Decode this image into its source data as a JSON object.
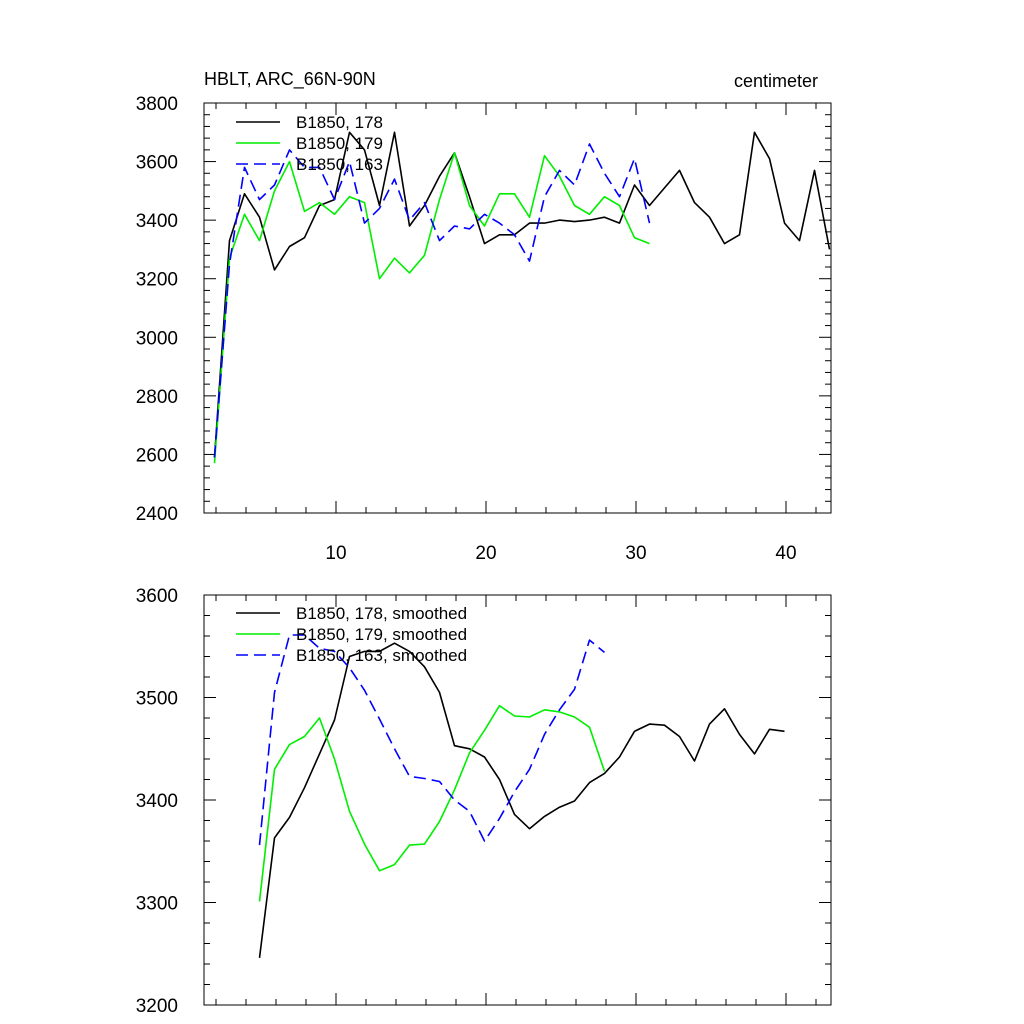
{
  "chart_data": [
    {
      "type": "line",
      "title": "HBLT, ARC_66N-90N",
      "units": "centimeter",
      "xlim": [
        1.2,
        43
      ],
      "ylim": [
        2400,
        3800
      ],
      "x_ticks": [
        10,
        20,
        30,
        40
      ],
      "y_ticks": [
        2400,
        2600,
        2800,
        3000,
        3200,
        3400,
        3600,
        3800
      ],
      "legend_placement": "top-left",
      "grid": false,
      "series": [
        {
          "name": "B1850, 178",
          "color": "#000000",
          "dash": "solid",
          "x": [
            1.9,
            2.9,
            3.9,
            4.9,
            5.9,
            6.9,
            7.9,
            8.9,
            9.9,
            10.9,
            11.9,
            12.9,
            13.9,
            14.9,
            15.9,
            16.9,
            17.9,
            18.9,
            19.9,
            20.9,
            21.9,
            22.9,
            23.9,
            24.9,
            25.9,
            26.9,
            27.9,
            28.9,
            29.9,
            30.9,
            31.9,
            32.9,
            33.9,
            34.9,
            35.9,
            36.9,
            37.9,
            38.9,
            39.9,
            40.9,
            41.9,
            42.9
          ],
          "y": [
            2590,
            3330,
            3490,
            3410,
            3230,
            3310,
            3340,
            3450,
            3470,
            3700,
            3640,
            3450,
            3700,
            3380,
            3450,
            3550,
            3630,
            3480,
            3320,
            3350,
            3350,
            3390,
            3390,
            3400,
            3395,
            3400,
            3410,
            3390,
            3520,
            3450,
            3510,
            3570,
            3460,
            3410,
            3320,
            3350,
            3700,
            3610,
            3390,
            3330,
            3570,
            3300
          ]
        },
        {
          "name": "B1850, 179",
          "color": "#00ee00",
          "dash": "solid",
          "x": [
            1.9,
            2.9,
            3.9,
            4.9,
            5.9,
            6.9,
            7.9,
            8.9,
            9.9,
            10.9,
            11.9,
            12.9,
            13.9,
            14.9,
            15.9,
            16.9,
            17.9,
            18.9,
            19.9,
            20.9,
            21.9,
            22.9,
            23.9,
            24.9,
            25.9,
            26.9,
            27.9,
            28.9,
            29.9,
            30.9
          ],
          "y": [
            2570,
            3270,
            3420,
            3330,
            3500,
            3600,
            3430,
            3460,
            3420,
            3480,
            3460,
            3200,
            3270,
            3220,
            3280,
            3470,
            3630,
            3450,
            3380,
            3490,
            3490,
            3410,
            3620,
            3550,
            3450,
            3420,
            3480,
            3450,
            3340,
            3320
          ]
        },
        {
          "name": "B1850, 163",
          "color": "#0000ff",
          "dash": "dashed",
          "x": [
            1.9,
            2.9,
            3.9,
            4.9,
            5.9,
            6.9,
            7.9,
            8.9,
            9.9,
            10.9,
            11.9,
            12.9,
            13.9,
            14.9,
            15.9,
            16.9,
            17.9,
            18.9,
            19.9,
            20.9,
            21.9,
            22.9,
            23.9,
            24.9,
            25.9,
            26.9,
            27.9,
            28.9,
            29.9,
            30.9
          ],
          "y": [
            2590,
            3250,
            3580,
            3470,
            3520,
            3640,
            3580,
            3580,
            3470,
            3600,
            3390,
            3440,
            3540,
            3400,
            3460,
            3330,
            3380,
            3370,
            3420,
            3390,
            3350,
            3260,
            3480,
            3570,
            3520,
            3660,
            3560,
            3480,
            3610,
            3390
          ]
        }
      ]
    },
    {
      "type": "line",
      "title": "",
      "xlim": [
        1.2,
        43
      ],
      "ylim": [
        3200,
        3600
      ],
      "x_ticks": [
        10,
        20,
        30,
        40
      ],
      "y_ticks": [
        3200,
        3300,
        3400,
        3500,
        3600
      ],
      "legend_placement": "top-left",
      "grid": false,
      "series": [
        {
          "name": "B1850, 178, smoothed",
          "color": "#000000",
          "dash": "solid",
          "x": [
            4.9,
            5.9,
            6.9,
            7.9,
            8.9,
            9.9,
            10.9,
            11.9,
            12.9,
            13.9,
            14.9,
            15.9,
            16.9,
            17.9,
            18.9,
            19.9,
            20.9,
            21.9,
            22.9,
            23.9,
            24.9,
            25.9,
            26.9,
            27.9,
            28.9,
            29.9,
            30.9,
            31.9,
            32.9,
            33.9,
            34.9,
            35.9,
            36.9,
            37.9,
            38.9,
            39.9
          ],
          "y": [
            3246,
            3363,
            3383,
            3412,
            3445,
            3478,
            3540,
            3545,
            3545,
            3553,
            3545,
            3530,
            3505,
            3453,
            3450,
            3442,
            3420,
            3386,
            3372,
            3384,
            3393,
            3399,
            3417,
            3426,
            3442,
            3467,
            3474,
            3473,
            3462,
            3438,
            3474,
            3489,
            3464,
            3445,
            3469,
            3467
          ]
        },
        {
          "name": "B1850, 179, smoothed",
          "color": "#00ee00",
          "dash": "solid",
          "x": [
            4.9,
            5.9,
            6.9,
            7.9,
            8.9,
            9.9,
            10.9,
            11.9,
            12.9,
            13.9,
            14.9,
            15.9,
            16.9,
            17.9,
            18.9,
            19.9,
            20.9,
            21.9,
            22.9,
            23.9,
            24.9,
            25.9,
            26.9,
            27.9
          ],
          "y": [
            3301,
            3430,
            3454,
            3462,
            3480,
            3440,
            3389,
            3357,
            3331,
            3337,
            3356,
            3357,
            3379,
            3410,
            3446,
            3468,
            3492,
            3482,
            3481,
            3488,
            3486,
            3481,
            3471,
            3428
          ]
        },
        {
          "name": "B1850, 163, smoothed",
          "color": "#0000ff",
          "dash": "dashed",
          "x": [
            4.9,
            5.9,
            6.9,
            7.9,
            8.9,
            9.9,
            10.9,
            11.9,
            12.9,
            13.9,
            14.9,
            15.9,
            16.9,
            17.9,
            18.9,
            19.9,
            20.9,
            21.9,
            22.9,
            23.9,
            24.9,
            25.9,
            26.9,
            27.9
          ],
          "y": [
            3356,
            3505,
            3561,
            3561,
            3548,
            3545,
            3529,
            3507,
            3479,
            3450,
            3423,
            3421,
            3418,
            3400,
            3389,
            3360,
            3382,
            3408,
            3430,
            3464,
            3488,
            3508,
            3556,
            3544
          ]
        }
      ]
    }
  ]
}
